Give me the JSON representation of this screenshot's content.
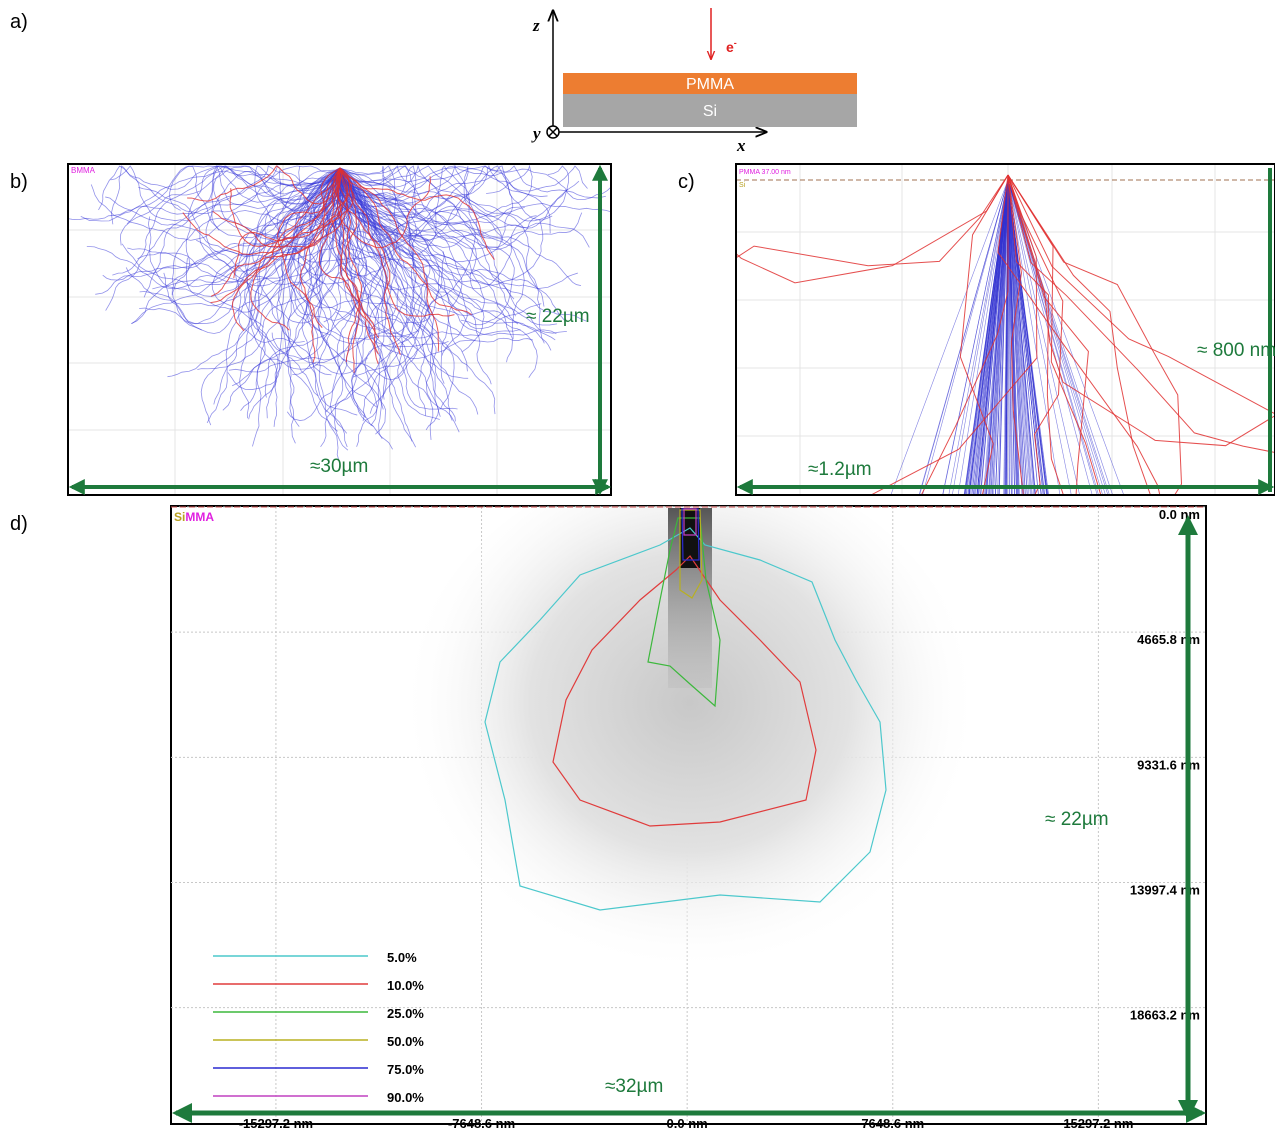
{
  "panel_labels": [
    "a)",
    "b)",
    "c)",
    "d)"
  ],
  "schematic": {
    "z_axis": "z",
    "x_axis": "x",
    "y_axis": "y",
    "beam": "e",
    "beam_charge": "-",
    "top_layer": "PMMA",
    "substrate": "Si"
  },
  "panel_b": {
    "legend": "BMMA",
    "height_note": "≈ 22µm",
    "width_note": "≈30µm"
  },
  "panel_c": {
    "legend": [
      "PMMA 37.00 nm",
      "Si"
    ],
    "height_note": "≈ 800 nm",
    "width_note": "≈1.2µm"
  },
  "panel_d": {
    "corner_labels": [
      {
        "text": "Si",
        "color": "#b8a020"
      },
      {
        "text": "MMA",
        "color": "#e020e0"
      }
    ],
    "xlim": [
      -19200,
      19300
    ],
    "ylim": [
      0,
      23000
    ],
    "xticks": [
      {
        "value": -15297.2,
        "label": "-15297.2 nm"
      },
      {
        "value": -7648.6,
        "label": "-7648.6 nm"
      },
      {
        "value": 0,
        "label": "0.0 nm"
      },
      {
        "value": 7648.6,
        "label": "7648.6 nm"
      },
      {
        "value": 15297.2,
        "label": "15297.2 nm"
      }
    ],
    "yticks": [
      {
        "value": 0,
        "label": "0.0 nm"
      },
      {
        "value": 4665.8,
        "label": "4665.8 nm"
      },
      {
        "value": 9331.6,
        "label": "9331.6 nm"
      },
      {
        "value": 13997.4,
        "label": "13997.4 nm"
      },
      {
        "value": 18663.2,
        "label": "18663.2 nm"
      }
    ],
    "grid": true,
    "legend": [
      {
        "name": "5.0%",
        "color": "#4cc8cc"
      },
      {
        "name": "10.0%",
        "color": "#e03c3c"
      },
      {
        "name": "25.0%",
        "color": "#3cb83c"
      },
      {
        "name": "50.0%",
        "color": "#b8b020"
      },
      {
        "name": "75.0%",
        "color": "#2a2ad0"
      },
      {
        "name": "90.0%",
        "color": "#c040c0"
      }
    ],
    "height_note": "≈ 22µm",
    "width_note": "≈32µm"
  }
}
